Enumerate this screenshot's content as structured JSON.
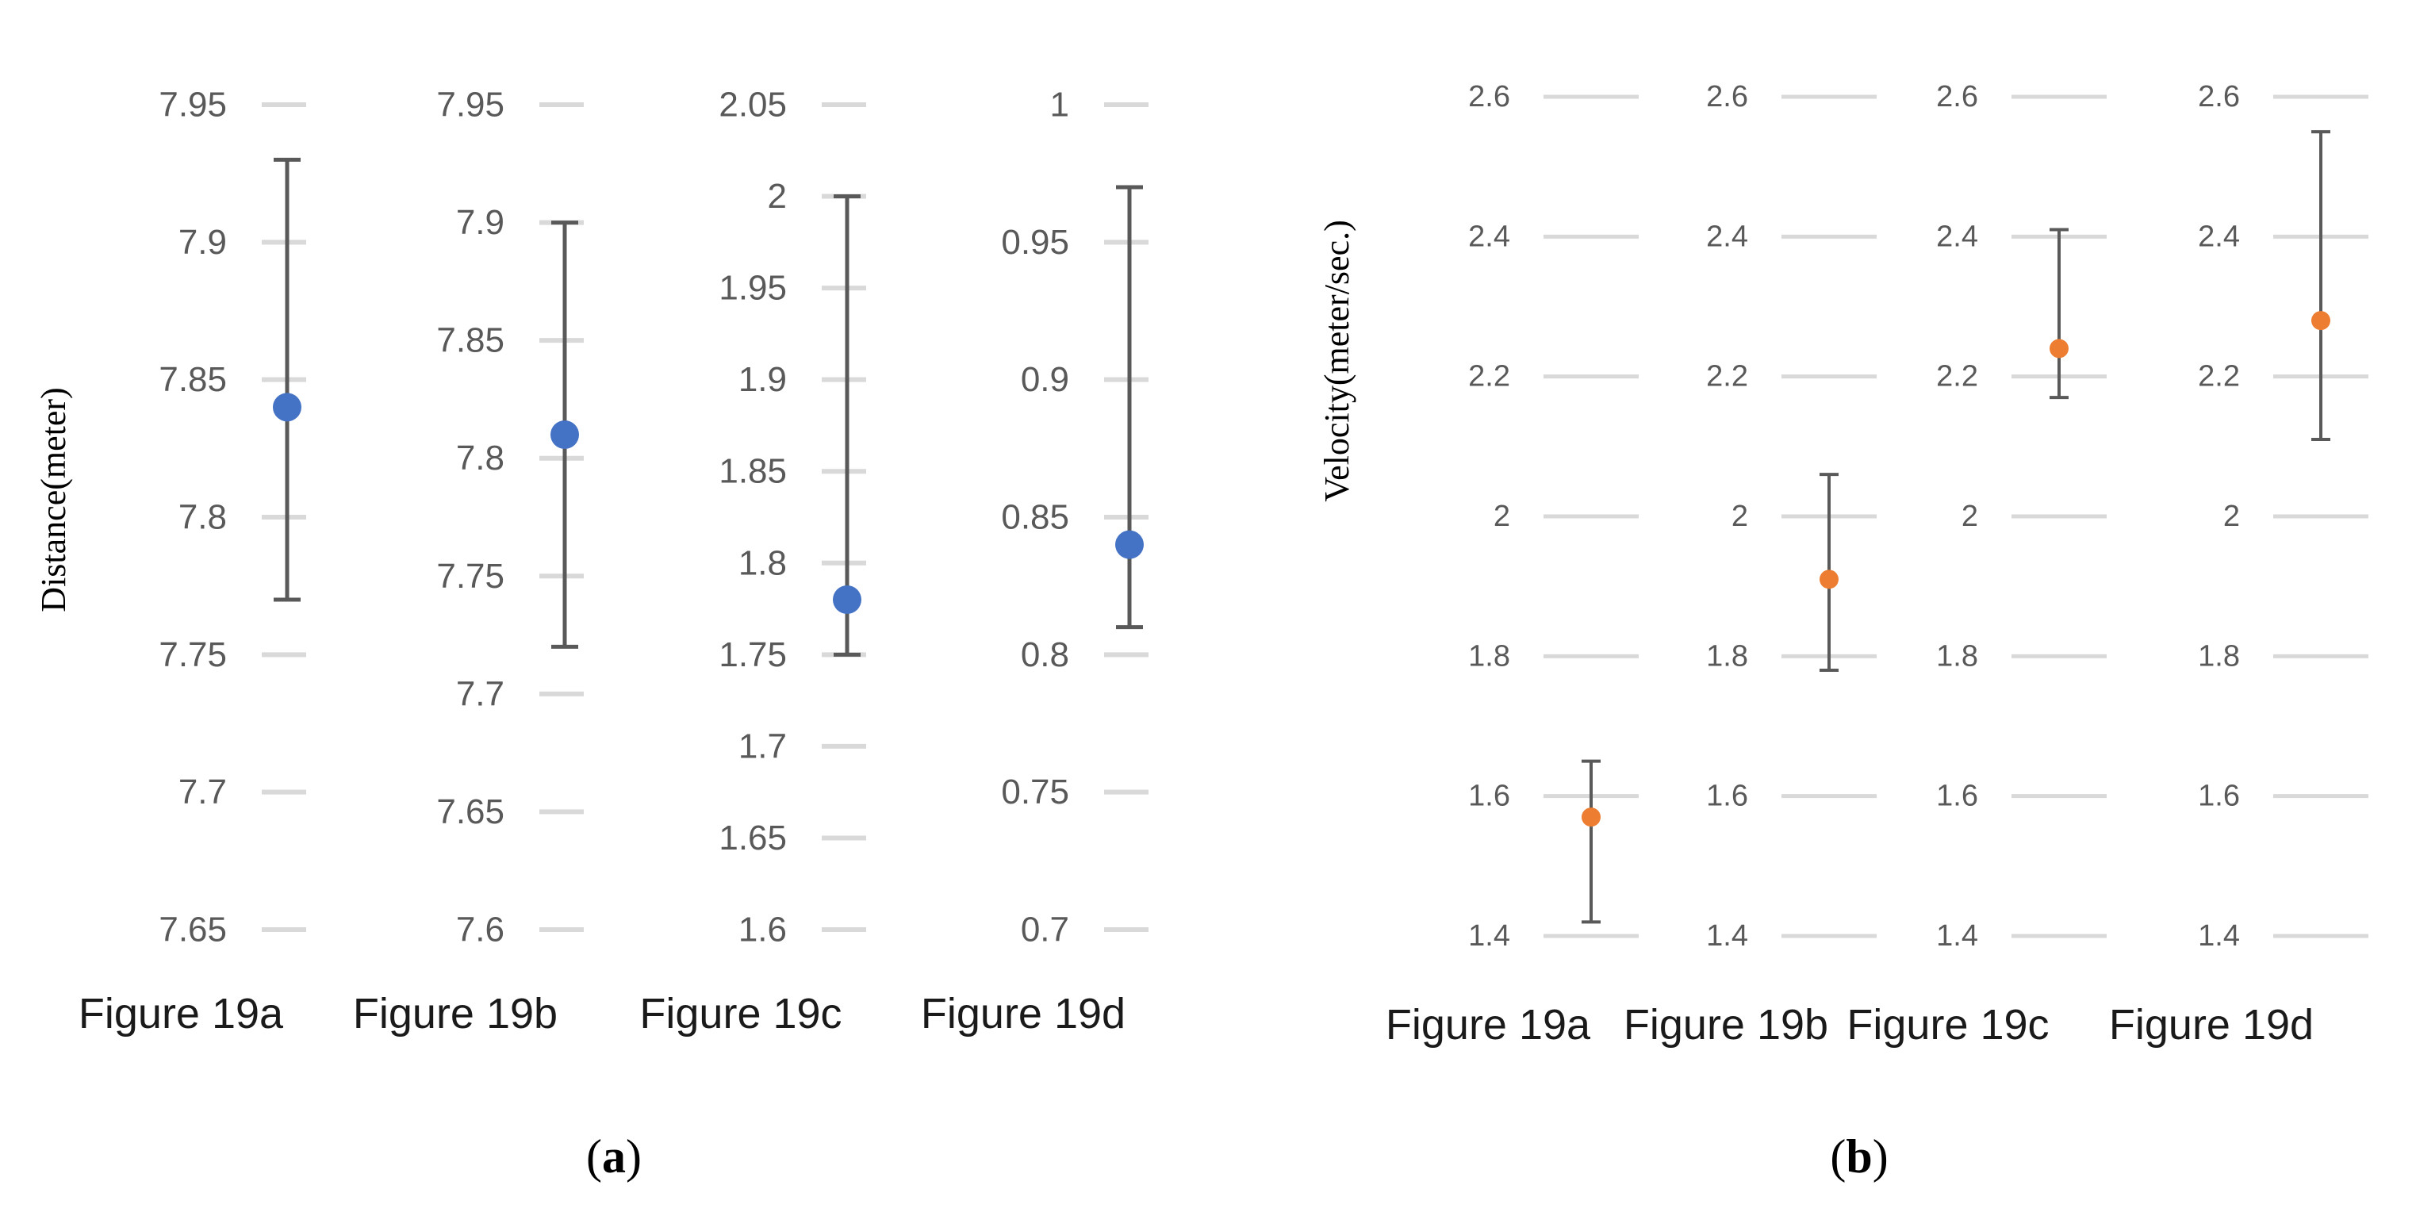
{
  "chart_data": [
    {
      "panel_label_open": "(",
      "panel_label": "a",
      "panel_label_close": ")",
      "type": "scatter",
      "ylabel": "Distance(meter)",
      "color": "#4472C4",
      "grid": true,
      "subplots": [
        {
          "category": "Figure 19a",
          "ylim": [
            7.65,
            7.95
          ],
          "ticks": [
            "7.65",
            "7.7",
            "7.75",
            "7.8",
            "7.85",
            "7.9",
            "7.95"
          ],
          "value": 7.84,
          "err_low": 7.77,
          "err_high": 7.93
        },
        {
          "category": "Figure 19b",
          "ylim": [
            7.6,
            7.95
          ],
          "ticks": [
            "7.6",
            "7.65",
            "7.7",
            "7.75",
            "7.8",
            "7.85",
            "7.9",
            "7.95"
          ],
          "value": 7.81,
          "err_low": 7.72,
          "err_high": 7.9
        },
        {
          "category": "Figure 19c",
          "ylim": [
            1.6,
            2.05
          ],
          "ticks": [
            "1.6",
            "1.65",
            "1.7",
            "1.75",
            "1.8",
            "1.85",
            "1.9",
            "1.95",
            "2",
            "2.05"
          ],
          "value": 1.78,
          "err_low": 1.75,
          "err_high": 2.0
        },
        {
          "category": "Figure 19d",
          "ylim": [
            0.7,
            1.0
          ],
          "ticks": [
            "0.7",
            "0.75",
            "0.8",
            "0.85",
            "0.9",
            "0.95",
            "1"
          ],
          "value": 0.84,
          "err_low": 0.81,
          "err_high": 0.97
        }
      ]
    },
    {
      "panel_label_open": "(",
      "panel_label": "b",
      "panel_label_close": ")",
      "type": "scatter",
      "ylabel": "Velocity(meter/sec.)",
      "color": "#ED7D31",
      "grid": true,
      "subplots": [
        {
          "category": "Figure 19a",
          "ylim": [
            1.4,
            2.6
          ],
          "ticks": [
            "1.4",
            "1.6",
            "1.8",
            "2",
            "2.2",
            "2.4",
            "2.6"
          ],
          "value": 1.57,
          "err_low": 1.42,
          "err_high": 1.65
        },
        {
          "category": "Figure 19b",
          "ylim": [
            1.4,
            2.6
          ],
          "ticks": [
            "1.4",
            "1.6",
            "1.8",
            "2",
            "2.2",
            "2.4",
            "2.6"
          ],
          "value": 1.91,
          "err_low": 1.78,
          "err_high": 2.06
        },
        {
          "category": "Figure 19c",
          "ylim": [
            1.4,
            2.6
          ],
          "ticks": [
            "1.4",
            "1.6",
            "1.8",
            "2",
            "2.2",
            "2.4",
            "2.6"
          ],
          "value": 2.24,
          "err_low": 2.17,
          "err_high": 2.41
        },
        {
          "category": "Figure 19d",
          "ylim": [
            1.4,
            2.6
          ],
          "ticks": [
            "1.4",
            "1.6",
            "1.8",
            "2",
            "2.2",
            "2.4",
            "2.6"
          ],
          "value": 2.28,
          "err_low": 2.11,
          "err_high": 2.55
        }
      ]
    }
  ]
}
